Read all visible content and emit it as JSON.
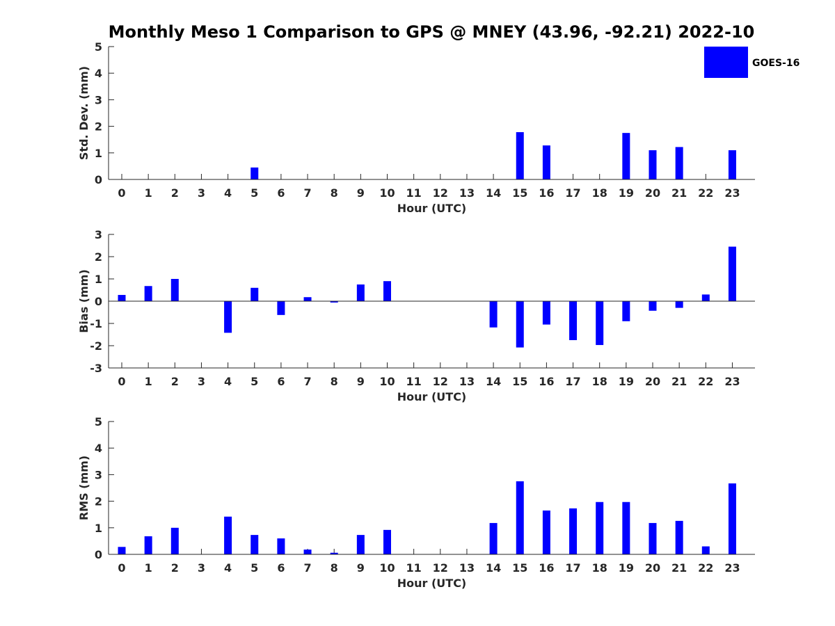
{
  "title": "Monthly Meso 1 Comparison to GPS @ MNEY (43.96, -92.21) 2022-10",
  "colors": {
    "bar": "#0000ff",
    "axis": "#262626"
  },
  "legend": {
    "label": "GOES-16",
    "placement": "top-right"
  },
  "chart_data": [
    {
      "type": "bar",
      "xlabel": "Hour (UTC)",
      "ylabel": "Std. Dev. (mm)",
      "ylim": [
        0,
        5
      ],
      "yticks": [
        0,
        1,
        2,
        3,
        4,
        5
      ],
      "categories": [
        "0",
        "1",
        "2",
        "3",
        "4",
        "5",
        "6",
        "7",
        "8",
        "9",
        "10",
        "11",
        "12",
        "13",
        "14",
        "15",
        "16",
        "17",
        "18",
        "19",
        "20",
        "21",
        "22",
        "23"
      ],
      "series": [
        {
          "name": "GOES-16",
          "values": [
            0,
            0,
            0,
            0,
            0,
            0.45,
            0,
            0,
            0,
            0,
            0,
            0,
            0,
            0,
            0,
            1.78,
            1.28,
            0,
            0,
            1.75,
            1.1,
            1.22,
            0,
            1.1
          ]
        }
      ]
    },
    {
      "type": "bar",
      "xlabel": "Hour (UTC)",
      "ylabel": "Bias (mm)",
      "ylim": [
        -3,
        3
      ],
      "yticks": [
        -3,
        -2,
        -1,
        0,
        1,
        2,
        3
      ],
      "categories": [
        "0",
        "1",
        "2",
        "3",
        "4",
        "5",
        "6",
        "7",
        "8",
        "9",
        "10",
        "11",
        "12",
        "13",
        "14",
        "15",
        "16",
        "17",
        "18",
        "19",
        "20",
        "21",
        "22",
        "23"
      ],
      "series": [
        {
          "name": "GOES-16",
          "values": [
            0.28,
            0.68,
            1.0,
            0,
            -1.42,
            0.6,
            -0.62,
            0.18,
            -0.06,
            0.75,
            0.9,
            0,
            0,
            0,
            -1.18,
            -2.08,
            -1.05,
            -1.75,
            -1.97,
            -0.9,
            -0.43,
            -0.3,
            0.3,
            2.45
          ]
        }
      ]
    },
    {
      "type": "bar",
      "xlabel": "Hour (UTC)",
      "ylabel": "RMS (mm)",
      "ylim": [
        0,
        5
      ],
      "yticks": [
        0,
        1,
        2,
        3,
        4,
        5
      ],
      "categories": [
        "0",
        "1",
        "2",
        "3",
        "4",
        "5",
        "6",
        "7",
        "8",
        "9",
        "10",
        "11",
        "12",
        "13",
        "14",
        "15",
        "16",
        "17",
        "18",
        "19",
        "20",
        "21",
        "22",
        "23"
      ],
      "series": [
        {
          "name": "GOES-16",
          "values": [
            0.28,
            0.68,
            1.0,
            0,
            1.42,
            0.73,
            0.6,
            0.18,
            0.06,
            0.73,
            0.92,
            0,
            0,
            0,
            1.18,
            2.75,
            1.65,
            1.73,
            1.97,
            1.97,
            1.18,
            1.26,
            0.3,
            2.67
          ]
        }
      ]
    }
  ]
}
